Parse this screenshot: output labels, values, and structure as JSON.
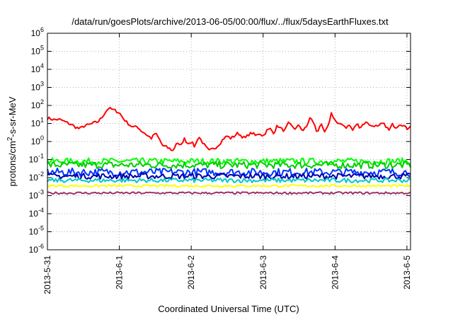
{
  "chart_data": {
    "type": "line",
    "title": "/data/run/goesPlots/archive/2013-06-05/00:00/flux/../flux/5daysEarthFluxes.txt",
    "xlabel": "Coordinated Universal Time (UTC)",
    "ylabel": "protons/cm2-s-sr-MeV",
    "ylabel_parts": {
      "pre": "protons/cm",
      "sup": "2",
      "post": "-s-sr-MeV"
    },
    "yscale": "log",
    "ylim_exp": [
      -6,
      6
    ],
    "y_tick_exponents": [
      -6,
      -5,
      -4,
      -3,
      -2,
      -1,
      0,
      1,
      2,
      3,
      4,
      5,
      6
    ],
    "y_tick_base": "10",
    "x_ticks": [
      "2013-5-31",
      "2013-6-1",
      "2013-6-2",
      "2013-6-3",
      "2013-6-4",
      "2013-6-5"
    ],
    "xlim_days": [
      0,
      5.05
    ],
    "grid": true,
    "legend": "none",
    "series": [
      {
        "color": "#ff0000",
        "x": [
          0,
          0.05,
          0.1,
          0.15,
          0.2,
          0.25,
          0.3,
          0.35,
          0.4,
          0.45,
          0.5,
          0.55,
          0.6,
          0.65,
          0.7,
          0.75,
          0.8,
          0.85,
          0.9,
          0.95,
          1.0,
          1.05,
          1.1,
          1.15,
          1.2,
          1.25,
          1.3,
          1.35,
          1.4,
          1.45,
          1.5,
          1.55,
          1.6,
          1.65,
          1.7,
          1.75,
          1.8,
          1.85,
          1.9,
          1.95,
          2.0,
          2.05,
          2.1,
          2.15,
          2.2,
          2.25,
          2.3,
          2.35,
          2.4,
          2.45,
          2.5,
          2.55,
          2.6,
          2.65,
          2.7,
          2.75,
          2.8,
          2.85,
          2.9,
          2.95,
          3.0,
          3.05,
          3.1,
          3.15,
          3.2,
          3.25,
          3.3,
          3.35,
          3.4,
          3.45,
          3.5,
          3.55,
          3.6,
          3.65,
          3.7,
          3.75,
          3.8,
          3.85,
          3.9,
          3.95,
          4.0,
          4.05,
          4.1,
          4.15,
          4.2,
          4.25,
          4.3,
          4.35,
          4.4,
          4.45,
          4.5,
          4.55,
          4.6,
          4.65,
          4.7,
          4.75,
          4.8,
          4.85,
          4.9,
          4.95,
          5.0,
          5.05
        ],
        "y": [
          20,
          18,
          16,
          17,
          15,
          12,
          10,
          8,
          6,
          5,
          7,
          8,
          9,
          11,
          12,
          20,
          40,
          70,
          60,
          50,
          40,
          20,
          12,
          8,
          6,
          7,
          4,
          3,
          2,
          1.5,
          3,
          1.5,
          0.6,
          0.5,
          0.4,
          0.3,
          1.0,
          0.5,
          1.5,
          0.8,
          1.0,
          0.5,
          2,
          1,
          0.5,
          0.3,
          0.4,
          0.5,
          0.8,
          1.5,
          2,
          1.5,
          2,
          3,
          2,
          1.5,
          2.5,
          3,
          2,
          3,
          2,
          4,
          5,
          3,
          8,
          5,
          4,
          10,
          7,
          5,
          8,
          4,
          6,
          20,
          12,
          3,
          10,
          3,
          6,
          40,
          15,
          8,
          10,
          6,
          8,
          4,
          10,
          6,
          10,
          12,
          7,
          8,
          6,
          10,
          8,
          4,
          9,
          6,
          10,
          8,
          5,
          8
        ],
        "noise": 0.08
      },
      {
        "color": "#00ff00",
        "x": [
          0,
          5.05
        ],
        "y": [
          0.08,
          0.08
        ],
        "noise": 0.18
      },
      {
        "color": "#00cc00",
        "x": [
          0,
          5.05
        ],
        "y": [
          0.05,
          0.05
        ],
        "noise": 0.2
      },
      {
        "color": "#0033ff",
        "x": [
          0,
          5.05
        ],
        "y": [
          0.02,
          0.02
        ],
        "noise": 0.22
      },
      {
        "color": "#0000aa",
        "x": [
          0,
          5.05
        ],
        "y": [
          0.012,
          0.012
        ],
        "noise": 0.16
      },
      {
        "color": "#00c8c8",
        "x": [
          0,
          5.05
        ],
        "y": [
          0.007,
          0.007
        ],
        "noise": 0.12
      },
      {
        "color": "#ffff00",
        "x": [
          0,
          5.05
        ],
        "y": [
          0.0035,
          0.0035
        ],
        "noise": 0.06
      },
      {
        "color": "#993366",
        "x": [
          0,
          5.05
        ],
        "y": [
          0.0014,
          0.0014
        ],
        "noise": 0.06
      }
    ]
  }
}
